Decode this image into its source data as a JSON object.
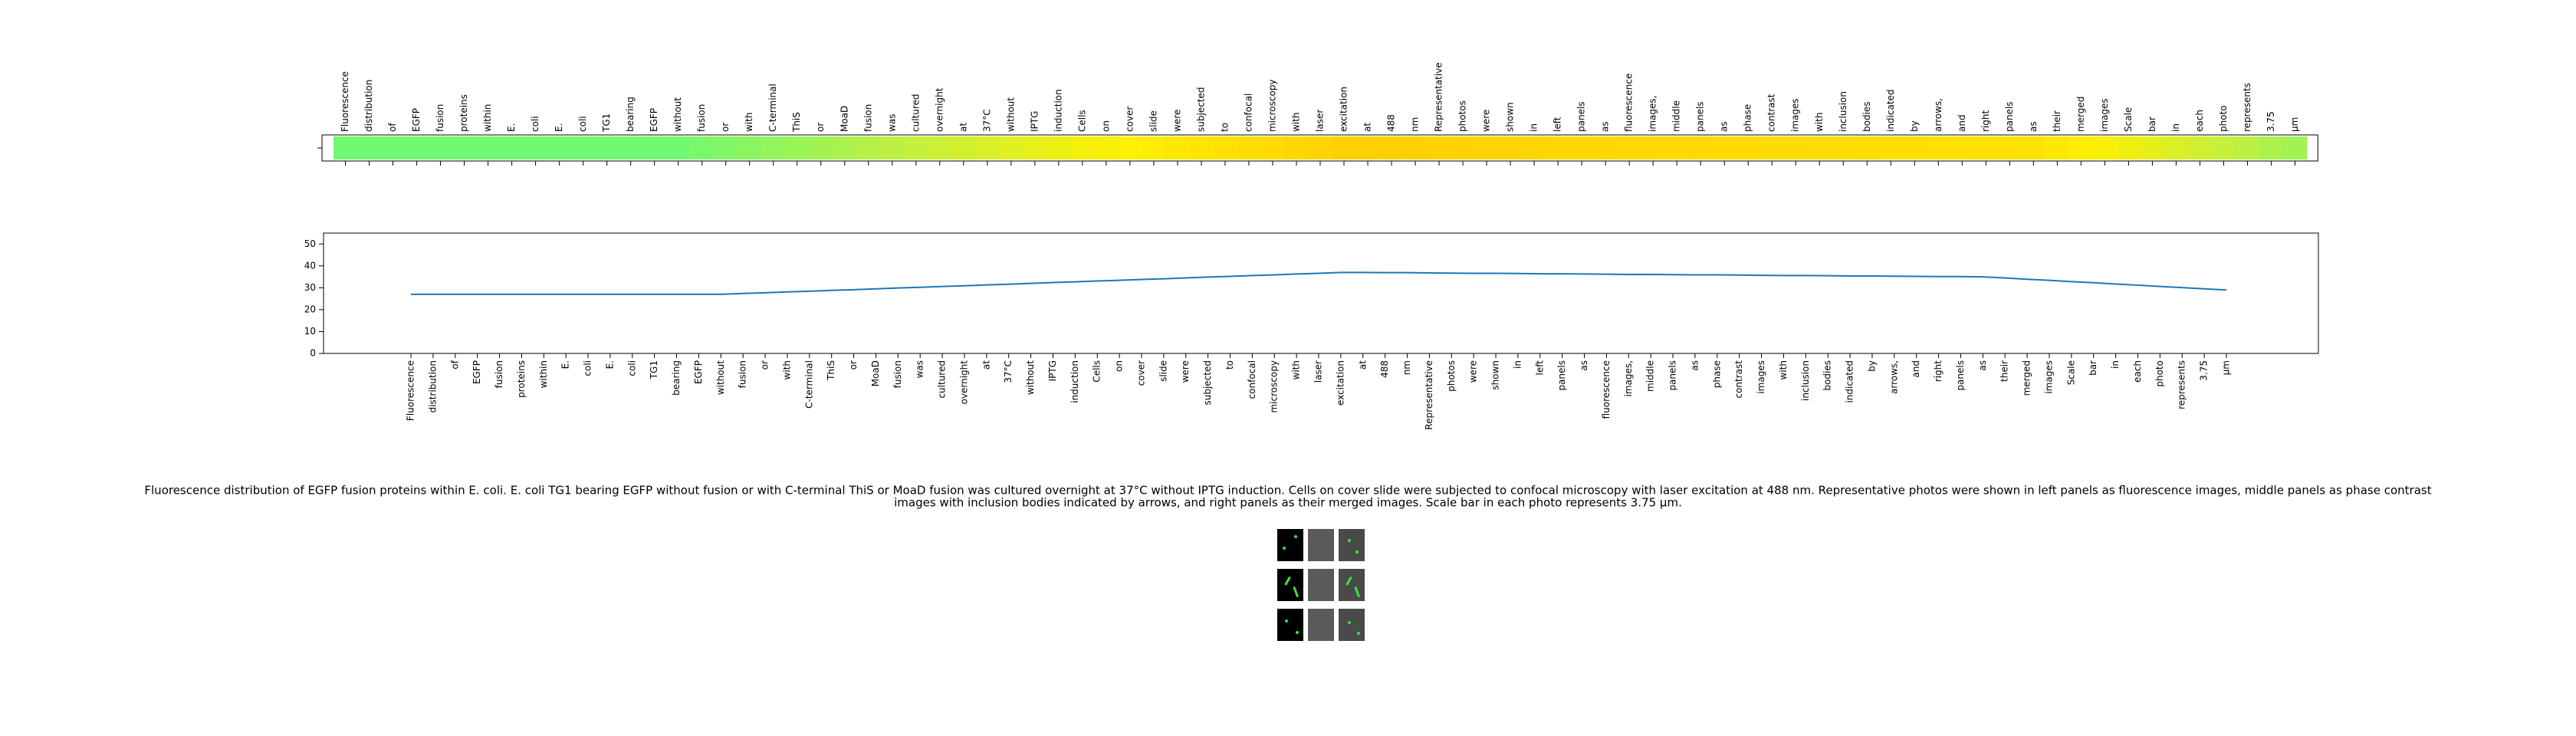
{
  "chart_data": [
    {
      "type": "heatmap",
      "categories": [
        "Fluorescence",
        "distribution",
        "of",
        "EGFP",
        "fusion",
        "proteins",
        "within",
        "E.",
        "coli",
        "E.",
        "coli",
        "TG1",
        "bearing",
        "EGFP",
        "without",
        "fusion",
        "or",
        "with",
        "C-terminal",
        "ThiS",
        "or",
        "MoaD",
        "fusion",
        "was",
        "cultured",
        "overnight",
        "at",
        "37°C",
        "without",
        "IPTG",
        "induction",
        "Cells",
        "on",
        "cover",
        "slide",
        "were",
        "subjected",
        "to",
        "confocal",
        "microscopy",
        "with",
        "laser",
        "excitation",
        "at",
        "488",
        "nm",
        "Representative",
        "photos",
        "were",
        "shown",
        "in",
        "left",
        "panels",
        "as",
        "fluorescence",
        "images,",
        "middle",
        "panels",
        "as",
        "phase",
        "contrast",
        "images",
        "with",
        "inclusion",
        "bodies",
        "indicated",
        "by",
        "arrows,",
        "and",
        "right",
        "panels",
        "as",
        "their",
        "merged",
        "images",
        "Scale",
        "bar",
        "in",
        "each",
        "photo",
        "represents",
        "3.75",
        "μm"
      ],
      "values": [
        27,
        27,
        27,
        27,
        27,
        27,
        27,
        27,
        27,
        27,
        27,
        27,
        27,
        27,
        27,
        27.4,
        27.7,
        28.1,
        28.4,
        28.8,
        29.1,
        29.5,
        29.9,
        30.2,
        30.6,
        30.9,
        31.3,
        31.6,
        32.0,
        32.4,
        32.7,
        33.1,
        33.4,
        33.8,
        34.1,
        34.5,
        34.9,
        35.2,
        35.6,
        35.9,
        36.3,
        36.6,
        37.0,
        37.0,
        36.9,
        36.9,
        36.8,
        36.7,
        36.6,
        36.6,
        36.5,
        36.4,
        36.4,
        36.3,
        36.2,
        36.1,
        36.1,
        36.0,
        35.9,
        35.9,
        35.8,
        35.7,
        35.6,
        35.6,
        35.5,
        35.4,
        35.4,
        35.3,
        35.2,
        35.1,
        35.1,
        35.0,
        34.5,
        33.9,
        33.4,
        32.8,
        32.3,
        31.7,
        31.2,
        30.6,
        30.1,
        29.5,
        29.0
      ],
      "colormap": [
        "#70f870",
        "#c0f040",
        "#fff000",
        "#ffd000"
      ]
    },
    {
      "type": "line",
      "categories": [
        "Fluorescence",
        "distribution",
        "of",
        "EGFP",
        "fusion",
        "proteins",
        "within",
        "E.",
        "coli",
        "E.",
        "coli",
        "TG1",
        "bearing",
        "EGFP",
        "without",
        "fusion",
        "or",
        "with",
        "C-terminal",
        "ThiS",
        "or",
        "MoaD",
        "fusion",
        "was",
        "cultured",
        "overnight",
        "at",
        "37°C",
        "without",
        "IPTG",
        "induction",
        "Cells",
        "on",
        "cover",
        "slide",
        "were",
        "subjected",
        "to",
        "confocal",
        "microscopy",
        "with",
        "laser",
        "excitation",
        "at",
        "488",
        "nm",
        "Representative",
        "photos",
        "were",
        "shown",
        "in",
        "left",
        "panels",
        "as",
        "fluorescence",
        "images,",
        "middle",
        "panels",
        "as",
        "phase",
        "contrast",
        "images",
        "with",
        "inclusion",
        "bodies",
        "indicated",
        "by",
        "arrows,",
        "and",
        "right",
        "panels",
        "as",
        "their",
        "merged",
        "images",
        "Scale",
        "bar",
        "in",
        "each",
        "photo",
        "represents",
        "3.75",
        "μm"
      ],
      "series": [
        {
          "color": "#1f77b4",
          "values": [
            27,
            27,
            27,
            27,
            27,
            27,
            27,
            27,
            27,
            27,
            27,
            27,
            27,
            27,
            27,
            27.4,
            27.7,
            28.1,
            28.4,
            28.8,
            29.1,
            29.5,
            29.9,
            30.2,
            30.6,
            30.9,
            31.3,
            31.6,
            32.0,
            32.4,
            32.7,
            33.1,
            33.4,
            33.8,
            34.1,
            34.5,
            34.9,
            35.2,
            35.6,
            35.9,
            36.3,
            36.6,
            37.0,
            37.0,
            36.9,
            36.9,
            36.8,
            36.7,
            36.6,
            36.6,
            36.5,
            36.4,
            36.4,
            36.3,
            36.2,
            36.1,
            36.1,
            36.0,
            35.9,
            35.9,
            35.8,
            35.7,
            35.6,
            35.6,
            35.5,
            35.4,
            35.4,
            35.3,
            35.2,
            35.1,
            35.1,
            35.0,
            34.5,
            33.9,
            33.4,
            32.8,
            32.3,
            31.7,
            31.2,
            30.6,
            30.1,
            29.5,
            29.0
          ]
        }
      ],
      "ylim": [
        0,
        55
      ],
      "yticks": [
        0,
        10,
        20,
        30,
        40,
        50
      ]
    }
  ],
  "caption": [
    "Fluorescence distribution of EGFP fusion proteins within E. coli. E. coli TG1 bearing EGFP without fusion or with C-terminal ThiS or MoaD fusion was cultured overnight at 37°C without IPTG induction. Cells on cover slide were subjected to confocal microscopy with laser excitation at 488 nm. Representative photos were shown in left panels as fluorescence images, middle panels as phase contrast",
    "images with inclusion bodies indicated by arrows, and right panels as their merged images. Scale bar in each photo represents 3.75 μm."
  ]
}
